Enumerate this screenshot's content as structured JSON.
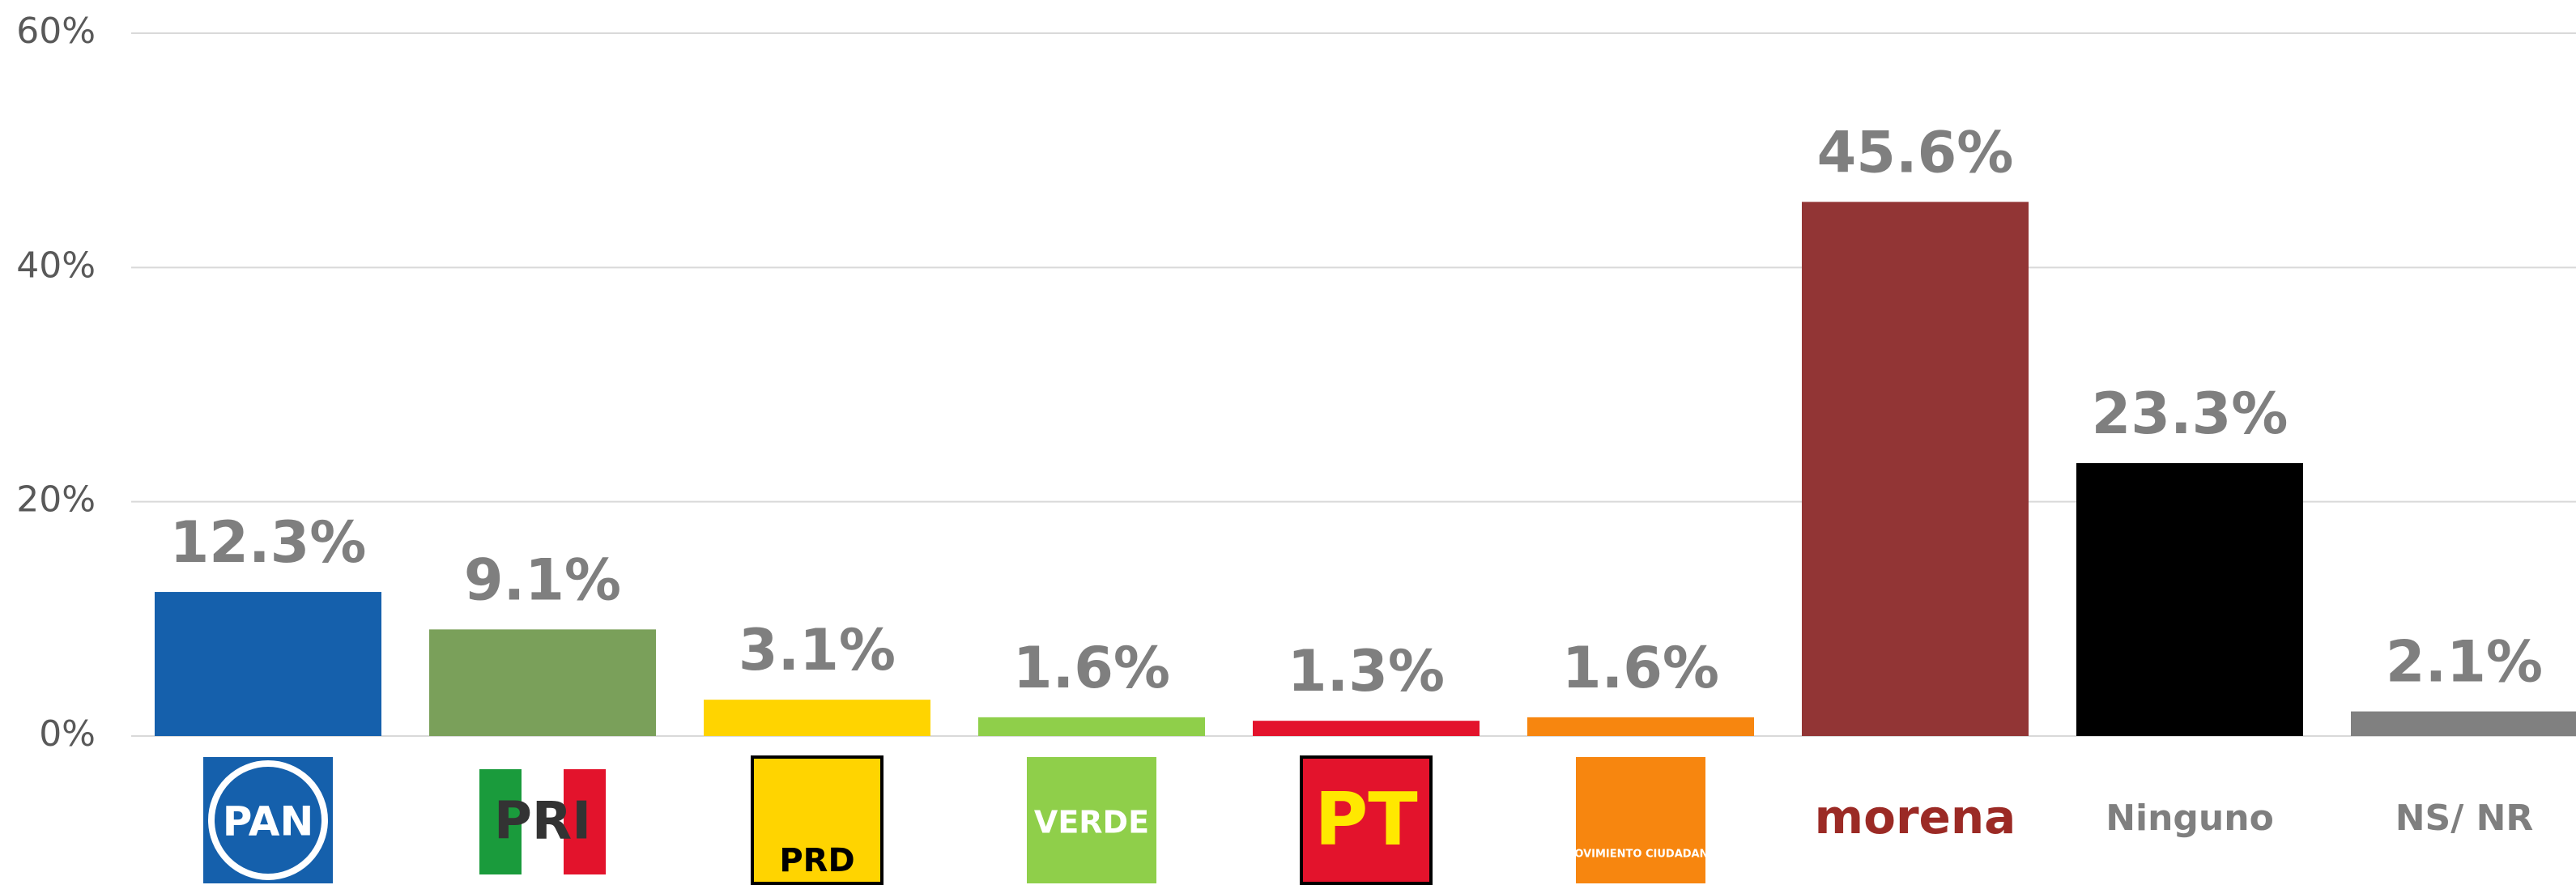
{
  "chart_data": {
    "type": "bar",
    "categories": [
      "PAN",
      "PRI",
      "PRD",
      "VERDE",
      "PT",
      "MOVIMIENTO CIUDADANO",
      "morena",
      "Ninguno",
      "NS/ NR"
    ],
    "values": [
      12.3,
      9.1,
      3.1,
      1.6,
      1.3,
      1.6,
      45.6,
      23.3,
      2.1
    ],
    "value_labels": [
      "12.3%",
      "9.1%",
      "3.1%",
      "1.6%",
      "1.3%",
      "1.6%",
      "45.6%",
      "23.3%",
      "2.1%"
    ],
    "colors": [
      "#1560ac",
      "#7aa05a",
      "#ffd400",
      "#8fcf4a",
      "#e3132c",
      "#f7860f",
      "#923535",
      "#000000",
      "#808080"
    ],
    "ylim": [
      0,
      60
    ],
    "yticks": [
      {
        "value": 0,
        "label": "0%"
      },
      {
        "value": 20,
        "label": "20%"
      },
      {
        "value": 40,
        "label": "40%"
      },
      {
        "value": 60,
        "label": "60%"
      }
    ],
    "grid": true
  }
}
